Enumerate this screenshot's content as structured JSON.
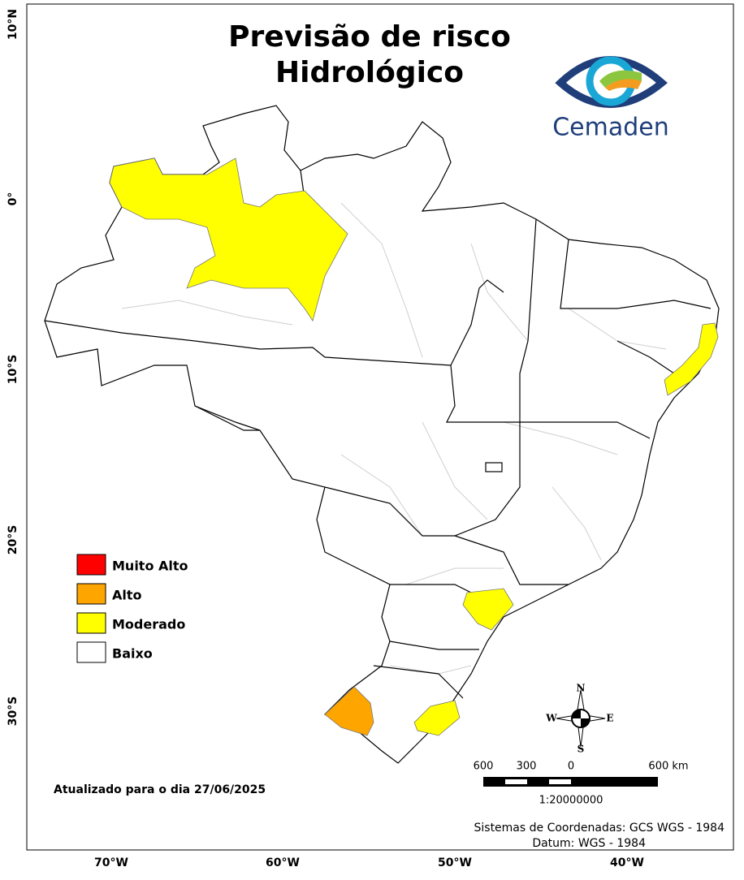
{
  "header": {
    "title_lines": [
      "Previsão de risco",
      "Hidrológico"
    ],
    "logo_text": "Cemaden"
  },
  "legend": {
    "items": [
      {
        "label": "Muito Alto",
        "color": "#ff0000"
      },
      {
        "label": "Alto",
        "color": "#ffa500"
      },
      {
        "label": "Moderado",
        "color": "#ffff00"
      },
      {
        "label": "Baixo",
        "color": "#ffffff"
      }
    ]
  },
  "axes": {
    "lat_labels": [
      "10°N",
      "0°",
      "10°S",
      "20°S",
      "30°S"
    ],
    "lon_labels": [
      "70°W",
      "60°W",
      "50°W",
      "40°W"
    ]
  },
  "compass": {
    "n": "N",
    "s": "S",
    "e": "E",
    "w": "W"
  },
  "scale_bar": {
    "labels": [
      "600",
      "300",
      "0",
      "600 km"
    ],
    "ratio": "1:20000000"
  },
  "footer": {
    "updated": "Atualizado para o dia 27/06/2025",
    "coordinates": "Sistemas de Coordenadas: GCS WGS - 1984",
    "datum": "Datum: WGS - 1984"
  }
}
